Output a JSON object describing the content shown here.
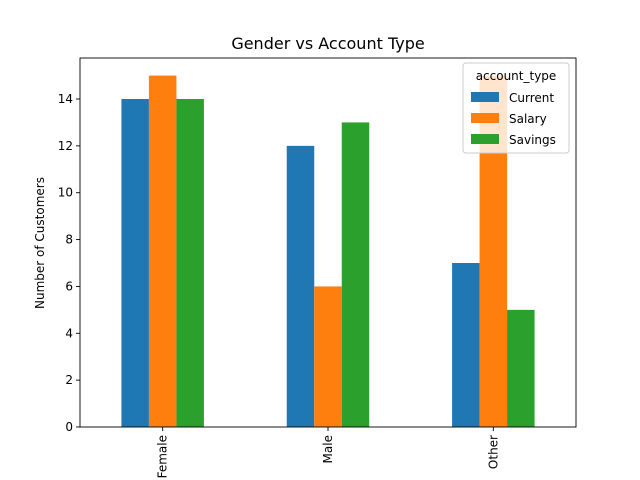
{
  "chart_data": {
    "type": "bar",
    "title": "Gender vs Account Type",
    "xlabel": "",
    "ylabel": "Number of Customers",
    "categories": [
      "Female",
      "Male",
      "Other"
    ],
    "series": [
      {
        "name": "Current",
        "values": [
          14,
          12,
          7
        ],
        "color": "#1f77b4"
      },
      {
        "name": "Salary",
        "values": [
          15,
          6,
          15
        ],
        "color": "#ff7f0e"
      },
      {
        "name": "Savings",
        "values": [
          14,
          13,
          5
        ],
        "color": "#2ca02c"
      }
    ],
    "ylim": [
      0,
      15.75
    ],
    "yticks": [
      0,
      2,
      4,
      6,
      8,
      10,
      12,
      14
    ],
    "grid": false,
    "legend": {
      "title": "account_type",
      "placement": "top-right"
    }
  }
}
